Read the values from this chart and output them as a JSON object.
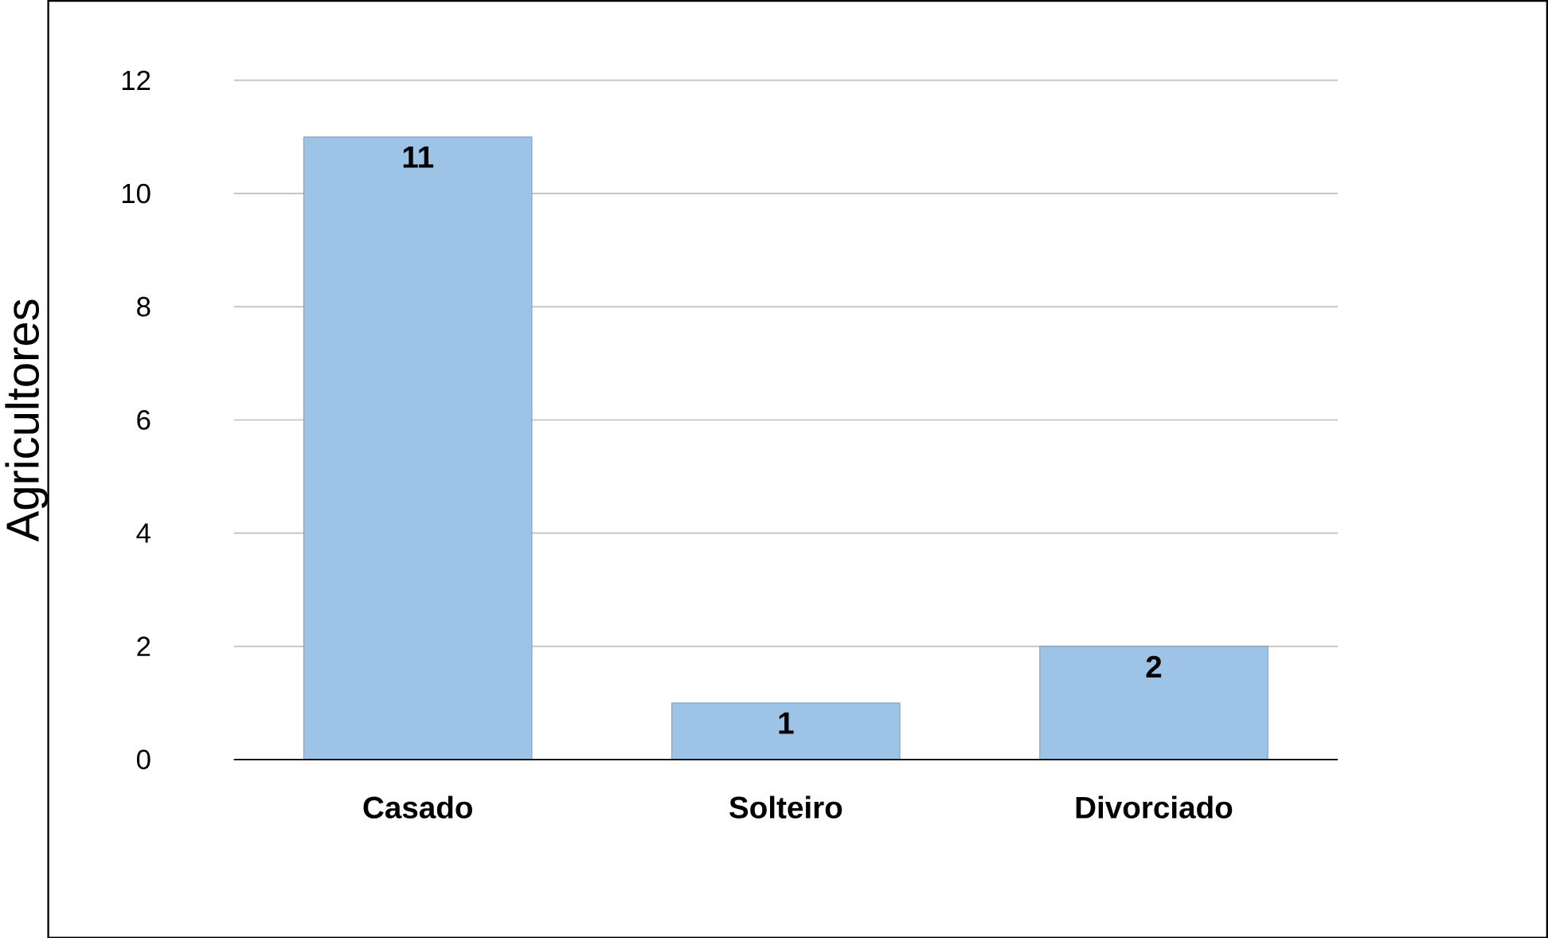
{
  "chart_data": {
    "type": "bar",
    "ylabel": "Agricultores",
    "categories": [
      "Casado",
      "Solteiro",
      "Divorciado"
    ],
    "values": [
      11,
      1,
      2
    ],
    "color": "#9dc3e6",
    "ylim": [
      0,
      12
    ],
    "yticks": [
      0,
      2,
      4,
      6,
      8,
      10,
      12
    ],
    "grid": "y",
    "data_labels": true
  }
}
